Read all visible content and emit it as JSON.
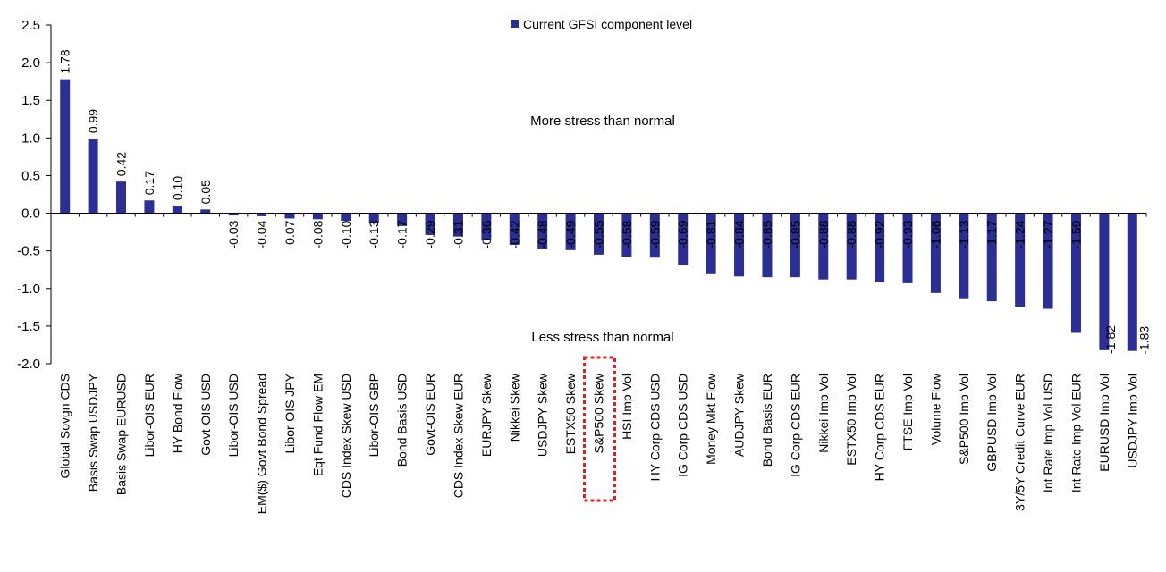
{
  "chart_data": {
    "type": "bar",
    "categories": [
      "Global Sovgn CDS",
      "Basis Swap USDJPY",
      "Basis Swap EURUSD",
      "Libor-OIS EUR",
      "HY Bond Flow",
      "Govt-OIS USD",
      "Libor-OIS USD",
      "EM($) Govt Bond Spread",
      "Libor-OIS JPY",
      "Eqt Fund Flow EM",
      "CDS Index Skew USD",
      "Libor-OIS GBP",
      "Bond Basis USD",
      "Govt-OIS EUR",
      "CDS Index Skew EUR",
      "EURJPY Skew",
      "Nikkei Skew",
      "USDJPY Skew",
      "ESTX50 Skew",
      "S&P500 Skew",
      "HSI Imp Vol",
      "HY Corp CDS USD",
      "IG Corp CDS USD",
      "Money Mkt Flow",
      "AUDJPY Skew",
      "Bond Basis EUR",
      "IG Corp CDS EUR",
      "Nikkei Imp Vol",
      "ESTX50 Imp Vol",
      "HY Corp CDS EUR",
      "FTSE Imp Vol",
      "Volume Flow",
      "S&P500 Imp Vol",
      "GBPUSD Imp Vol",
      "3Y/5Y Credit Curve EUR",
      "Int Rate Imp Vol USD",
      "Int Rate Imp Vol EUR",
      "EURUSD Imp Vol",
      "USDJPY Imp Vol"
    ],
    "values": [
      1.78,
      0.99,
      0.42,
      0.17,
      0.1,
      0.05,
      -0.03,
      -0.04,
      -0.07,
      -0.08,
      -0.1,
      -0.13,
      -0.17,
      -0.29,
      -0.31,
      -0.36,
      -0.42,
      -0.48,
      -0.49,
      -0.55,
      -0.58,
      -0.59,
      -0.69,
      -0.81,
      -0.84,
      -0.85,
      -0.85,
      -0.88,
      -0.88,
      -0.92,
      -0.93,
      -1.06,
      -1.13,
      -1.17,
      -1.24,
      -1.27,
      -1.59,
      -1.82,
      -1.83
    ],
    "value_labels": [
      "1.78",
      "0.99",
      "0.42",
      "0.17",
      "0.10",
      "0.05",
      "-0.03",
      "-0.04",
      "-0.07",
      "-0.08",
      "-0.10",
      "-0.13",
      "-0.17",
      "-0.29",
      "-0.31",
      "-0.36",
      "-0.42",
      "-0.48",
      "-0.49",
      "-0.55",
      "-0.58",
      "-0.59",
      "-0.69",
      "-0.81",
      "-0.84",
      "-0.85",
      "-0.85",
      "-0.88",
      "-0.88",
      "-0.92",
      "-0.93",
      "-1.06",
      "-1.13",
      "-1.17",
      "-1.24",
      "-1.27",
      "-1.59",
      "-1.82",
      "-1.83"
    ],
    "series_name": "Current GFSI component level",
    "ylim": [
      -2.0,
      2.5
    ],
    "yticks": [
      "2.5",
      "2.0",
      "1.5",
      "1.0",
      "0.5",
      "0.0",
      "-0.5",
      "-1.0",
      "-1.5",
      "-2.0"
    ],
    "ytick_values": [
      2.5,
      2.0,
      1.5,
      1.0,
      0.5,
      0.0,
      -0.5,
      -1.0,
      -1.5,
      -2.0
    ],
    "annotations": {
      "upper": "More stress than normal",
      "lower": "Less stress than normal"
    },
    "highlighted_category": "S&P500 Skew",
    "colors": {
      "bar": "#2b2e92",
      "highlight_box": "#e02020",
      "axis": "#000000"
    },
    "legend_position": "top-center",
    "grid": false
  }
}
